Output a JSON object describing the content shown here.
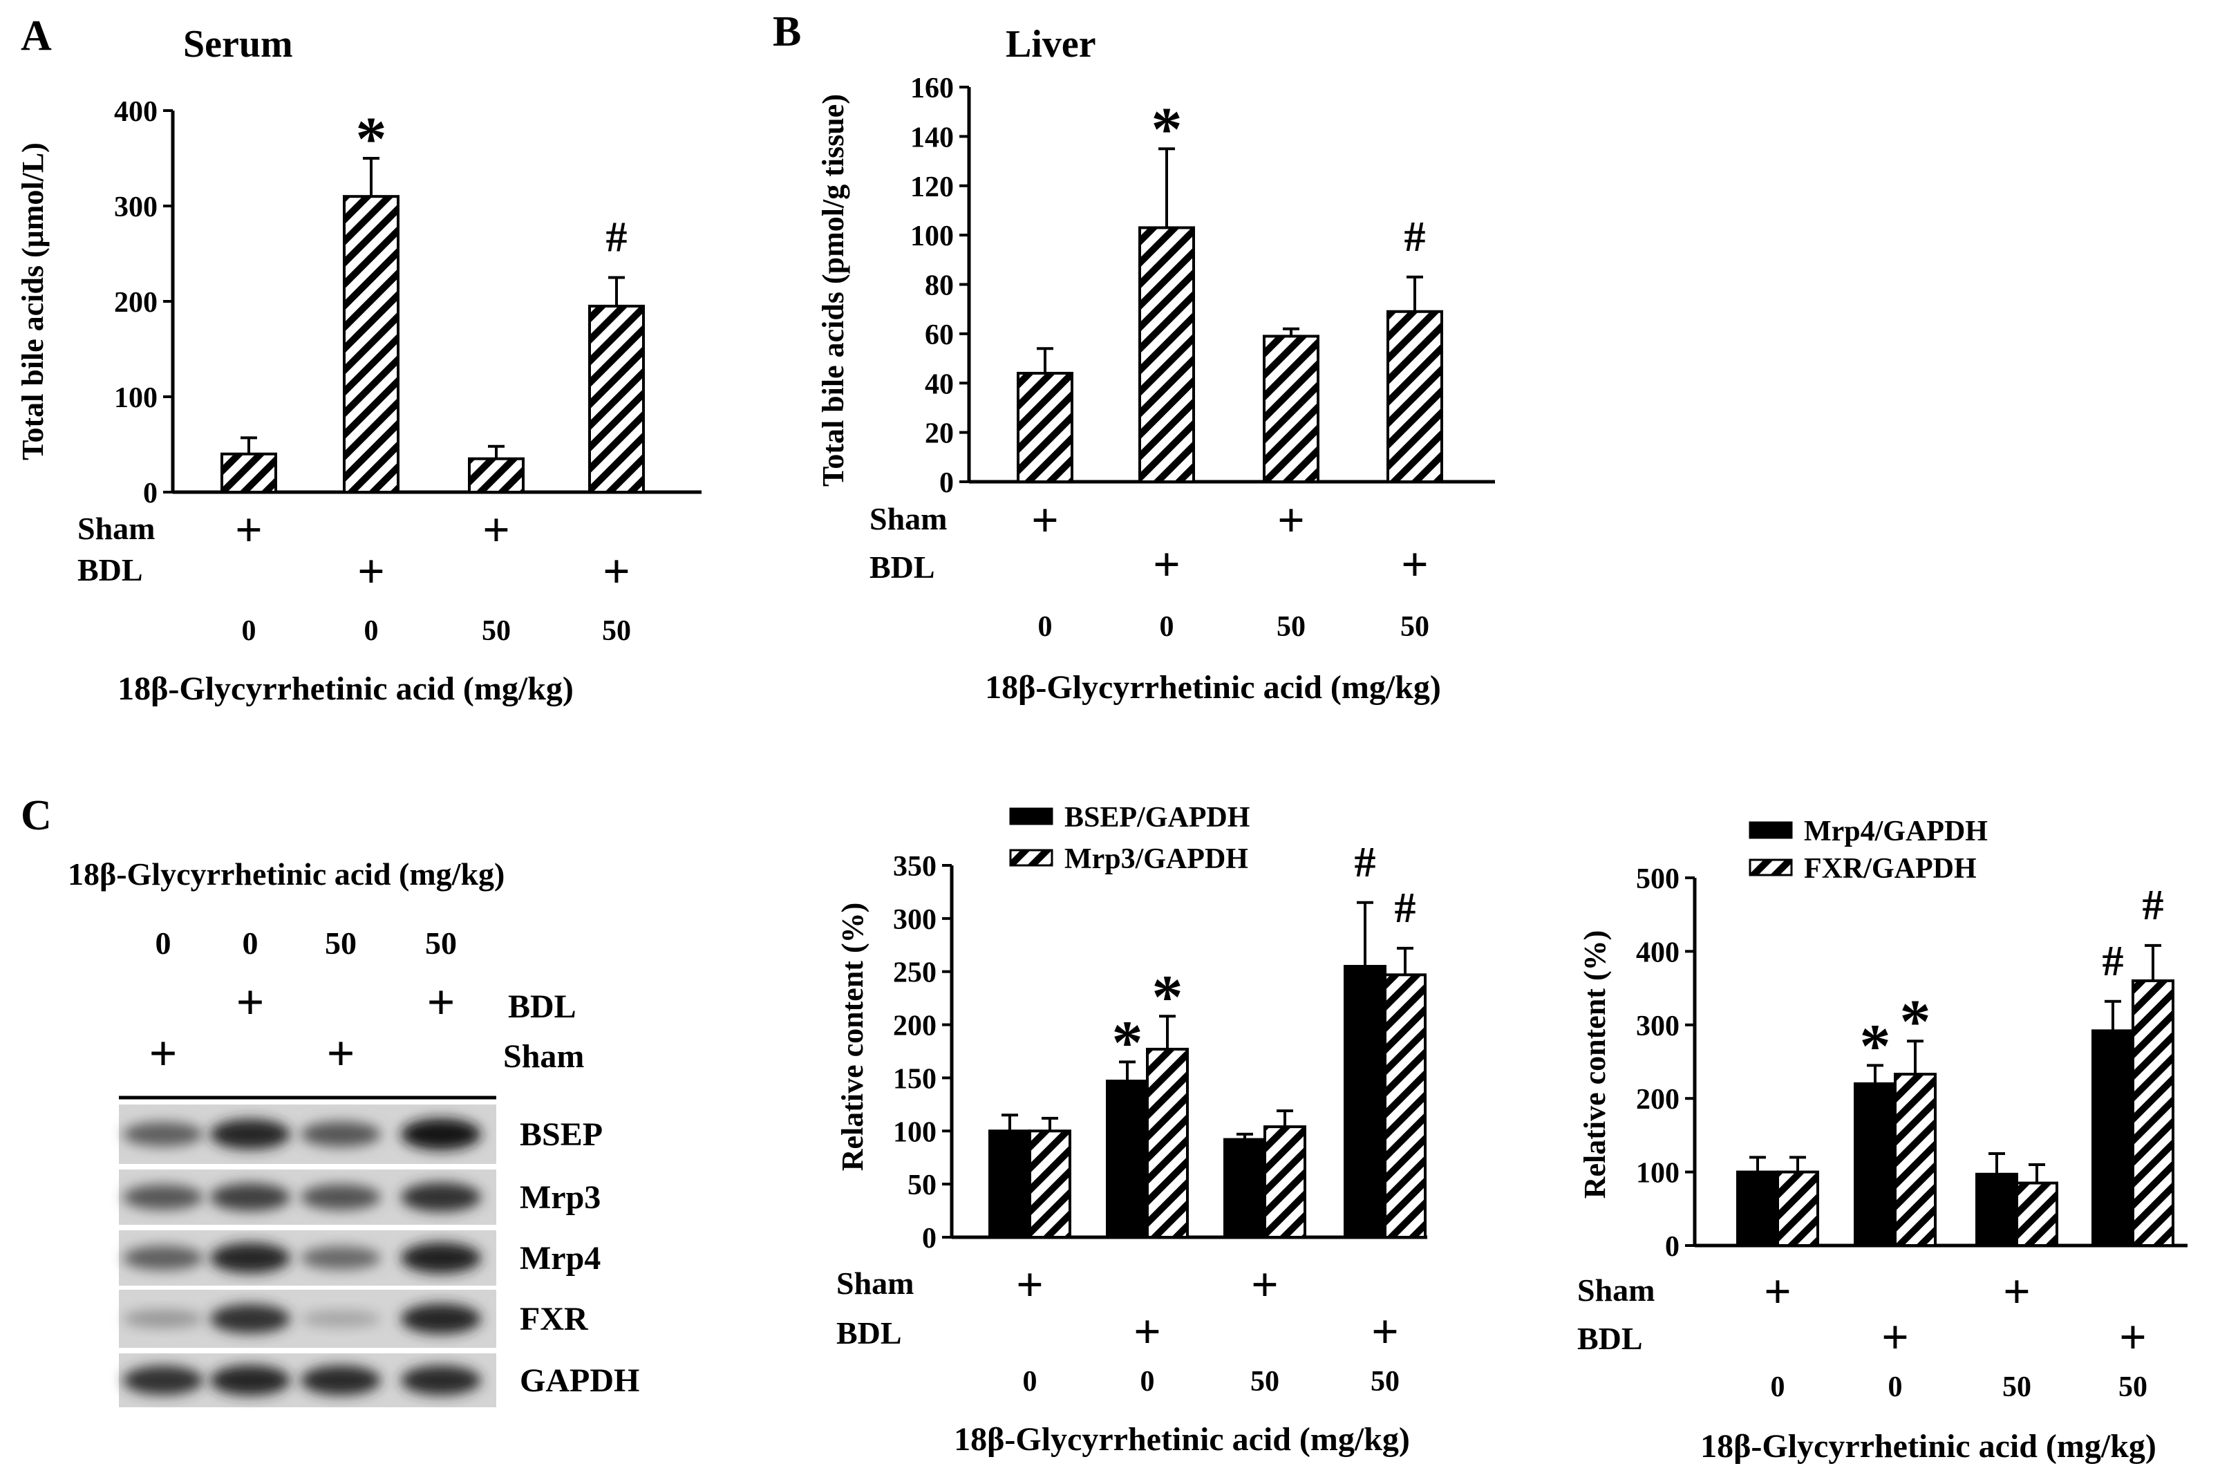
{
  "panels": {
    "A": {
      "letter": "A"
    },
    "B": {
      "letter": "B"
    },
    "C": {
      "letter": "C"
    }
  },
  "colors": {
    "ink": "#000000",
    "background": "#ffffff",
    "hatch": "#000000"
  },
  "chart_data": [
    {
      "id": "A",
      "type": "bar",
      "title": "Serum",
      "ylabel": "Total bile acids (μmol/L)",
      "xlabel": "18β-Glycyrrhetinic acid (mg/kg)",
      "ylim": [
        0,
        400
      ],
      "yticks": [
        "0",
        "100",
        "200",
        "300",
        "400"
      ],
      "row_labels": [
        "Sham",
        "BDL"
      ],
      "sham": [
        "+",
        "",
        "+",
        ""
      ],
      "bdl": [
        "",
        "+",
        "",
        "+"
      ],
      "doses": [
        "0",
        "0",
        "50",
        "50"
      ],
      "series": [
        {
          "pattern": "hatched",
          "values": [
            40,
            310,
            35,
            195
          ],
          "errors": [
            17,
            40,
            13,
            30
          ]
        }
      ],
      "annotations": [
        "",
        "*",
        "",
        "#"
      ]
    },
    {
      "id": "B",
      "type": "bar",
      "title": "Liver",
      "ylabel": "Total bile acids (pmol/g tissue)",
      "xlabel": "18β-Glycyrrhetinic acid (mg/kg)",
      "ylim": [
        0,
        160
      ],
      "yticks": [
        "0",
        "20",
        "40",
        "60",
        "80",
        "100",
        "120",
        "140",
        "160"
      ],
      "row_labels": [
        "Sham",
        "BDL"
      ],
      "sham": [
        "+",
        "",
        "+",
        ""
      ],
      "bdl": [
        "",
        "+",
        "",
        "+"
      ],
      "doses": [
        "0",
        "0",
        "50",
        "50"
      ],
      "series": [
        {
          "pattern": "hatched",
          "values": [
            44,
            103,
            59,
            69
          ],
          "errors": [
            10,
            32,
            3,
            14
          ]
        }
      ],
      "annotations": [
        "",
        "*",
        "",
        "#"
      ]
    },
    {
      "id": "C1",
      "type": "bar",
      "title": "",
      "ylabel": "Relative content (%)",
      "xlabel": "18β-Glycyrrhetinic acid (mg/kg)",
      "ylim": [
        0,
        350
      ],
      "yticks": [
        "0",
        "50",
        "100",
        "150",
        "200",
        "250",
        "300",
        "350"
      ],
      "row_labels": [
        "Sham",
        "BDL"
      ],
      "sham": [
        "+",
        "",
        "+",
        ""
      ],
      "bdl": [
        "",
        "+",
        "",
        "+"
      ],
      "doses": [
        "0",
        "0",
        "50",
        "50"
      ],
      "legend_position": "top",
      "series": [
        {
          "name": "BSEP/GAPDH",
          "pattern": "solid",
          "values": [
            100,
            147,
            92,
            255
          ],
          "errors": [
            15,
            18,
            5,
            60
          ],
          "annotations": [
            "",
            "*",
            "",
            "#"
          ]
        },
        {
          "name": "Mrp3/GAPDH",
          "pattern": "hatched",
          "values": [
            100,
            177,
            104,
            247
          ],
          "errors": [
            12,
            31,
            15,
            25
          ],
          "annotations": [
            "",
            "*",
            "",
            "#"
          ]
        }
      ]
    },
    {
      "id": "C2",
      "type": "bar",
      "title": "",
      "ylabel": "Relative content (%)",
      "xlabel": "18β-Glycyrrhetinic acid (mg/kg)",
      "ylim": [
        0,
        500
      ],
      "yticks": [
        "0",
        "100",
        "200",
        "300",
        "400",
        "500"
      ],
      "row_labels": [
        "Sham",
        "BDL"
      ],
      "sham": [
        "+",
        "",
        "+",
        ""
      ],
      "bdl": [
        "",
        "+",
        "",
        "+"
      ],
      "doses": [
        "0",
        "0",
        "50",
        "50"
      ],
      "legend_position": "top",
      "series": [
        {
          "name": "Mrp4/GAPDH",
          "pattern": "solid",
          "values": [
            100,
            220,
            97,
            292
          ],
          "errors": [
            20,
            25,
            28,
            40
          ],
          "annotations": [
            "",
            "*",
            "",
            "#"
          ]
        },
        {
          "name": "FXR/GAPDH",
          "pattern": "hatched",
          "values": [
            100,
            233,
            85,
            360
          ],
          "errors": [
            20,
            45,
            25,
            48
          ],
          "annotations": [
            "",
            "*",
            "",
            "#"
          ]
        }
      ]
    }
  ],
  "blot": {
    "title": "18β-Glycyrrhetinic acid (mg/kg)",
    "doses": [
      "0",
      "0",
      "50",
      "50"
    ],
    "bdl_label": "BDL",
    "sham_label": "Sham",
    "bdl": [
      "",
      "+",
      "",
      "+"
    ],
    "sham": [
      "+",
      "",
      "+",
      ""
    ],
    "rows": [
      {
        "label": "BSEP",
        "intensity": [
          0.55,
          0.85,
          0.6,
          0.92
        ]
      },
      {
        "label": "Mrp3",
        "intensity": [
          0.6,
          0.72,
          0.62,
          0.8
        ]
      },
      {
        "label": "Mrp4",
        "intensity": [
          0.55,
          0.85,
          0.5,
          0.88
        ]
      },
      {
        "label": "FXR",
        "intensity": [
          0.25,
          0.8,
          0.18,
          0.85
        ]
      },
      {
        "label": "GAPDH",
        "intensity": [
          0.8,
          0.85,
          0.82,
          0.82
        ]
      }
    ]
  }
}
